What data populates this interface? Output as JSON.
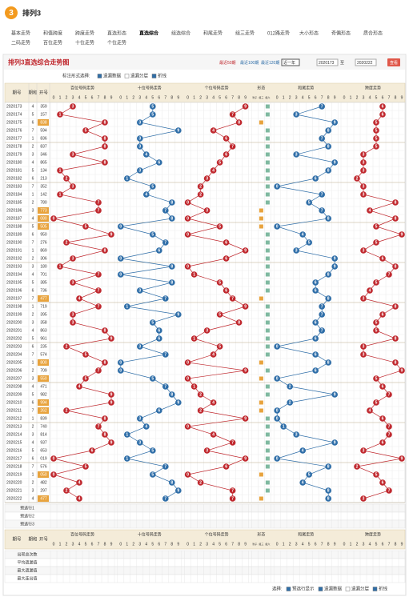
{
  "header": {
    "logo": "3",
    "title": "排列3"
  },
  "nav": [
    [
      "基本走势",
      "和值跨度",
      "跨度走势",
      "直选形态",
      "直选综合",
      "组选综合",
      "和尾走势",
      "组三走势",
      "012路走势",
      "大小形态",
      "奇偶形态",
      "质合形态"
    ],
    [
      "二码走势",
      "百位走势",
      "十位走势",
      "个位走势"
    ]
  ],
  "active_tab": [
    0,
    4
  ],
  "panel": {
    "title": "排列3直选综合走势图",
    "quick": [
      "最近50期",
      "最近100期",
      "最近120期"
    ],
    "range_select": "近一年",
    "from": "2020173",
    "to_label": "至",
    "to": "2020222",
    "button": "查看"
  },
  "options": {
    "label": "标注形式选择:",
    "items": [
      "遗漏数据",
      "遗漏分层",
      "折线"
    ],
    "checked": [
      true,
      false,
      true
    ]
  },
  "table": {
    "head": {
      "issue": "期号",
      "n": "期和",
      "number": "开号",
      "groups": [
        "百位号码走势",
        "十位号码走势",
        "个位号码走势",
        "形态",
        "和尾走势",
        "跨度走势"
      ],
      "forms": [
        "豹子",
        "组三",
        "组六"
      ],
      "digits": [
        0,
        1,
        2,
        3,
        4,
        5,
        6,
        7,
        8,
        9
      ]
    },
    "line_colors": [
      "#c0282e",
      "#2f6ea8",
      "#c0282e",
      "#2f6ea8",
      "#c0282e"
    ],
    "rows": [
      [
        "2020173",
        4,
        "359",
        3,
        5,
        9,
        7,
        6
      ],
      [
        "2020174",
        5,
        "157",
        1,
        5,
        7,
        3,
        6
      ],
      [
        "2020175",
        6,
        "838",
        8,
        3,
        8,
        9,
        5
      ],
      [
        "2020176",
        7,
        "594",
        5,
        9,
        4,
        8,
        5
      ],
      [
        "2020177",
        1,
        "836",
        8,
        3,
        6,
        7,
        5
      ],
      [
        "2020178",
        2,
        "837",
        8,
        3,
        7,
        8,
        5
      ],
      [
        "2020179",
        3,
        "346",
        3,
        4,
        6,
        3,
        3
      ],
      [
        "2020180",
        4,
        "865",
        8,
        6,
        5,
        9,
        3
      ],
      [
        "2020181",
        5,
        "134",
        1,
        3,
        4,
        8,
        3
      ],
      [
        "2020182",
        6,
        "213",
        2,
        1,
        3,
        6,
        2
      ],
      [
        "2020183",
        7,
        "352",
        3,
        5,
        2,
        0,
        3
      ],
      [
        "2020184",
        1,
        "142",
        1,
        4,
        2,
        7,
        3
      ],
      [
        "2020185",
        2,
        "780",
        7,
        8,
        0,
        5,
        8
      ],
      [
        "2020186",
        3,
        "773",
        7,
        7,
        3,
        7,
        4
      ],
      [
        "2020187",
        4,
        "080",
        0,
        8,
        0,
        8,
        8
      ],
      [
        "2020188",
        5,
        "505",
        5,
        0,
        5,
        0,
        5
      ],
      [
        "2020189",
        6,
        "950",
        9,
        5,
        0,
        4,
        9
      ],
      [
        "2020190",
        7,
        "276",
        2,
        7,
        6,
        5,
        5
      ],
      [
        "2020191",
        1,
        "869",
        8,
        6,
        9,
        3,
        3
      ],
      [
        "2020192",
        2,
        "306",
        3,
        0,
        6,
        9,
        6
      ],
      [
        "2020193",
        3,
        "180",
        1,
        8,
        0,
        9,
        8
      ],
      [
        "2020194",
        4,
        "701",
        7,
        0,
        1,
        8,
        7
      ],
      [
        "2020195",
        5,
        "385",
        3,
        8,
        5,
        6,
        5
      ],
      [
        "2020196",
        6,
        "736",
        7,
        3,
        6,
        6,
        4
      ],
      [
        "2020197",
        7,
        "477",
        4,
        7,
        7,
        8,
        3
      ],
      [
        "2020198",
        1,
        "719",
        7,
        1,
        9,
        7,
        8
      ],
      [
        "2020199",
        2,
        "395",
        3,
        9,
        5,
        7,
        6
      ],
      [
        "2020200",
        3,
        "358",
        3,
        5,
        8,
        6,
        5
      ],
      [
        "2020201",
        4,
        "863",
        8,
        6,
        3,
        7,
        5
      ],
      [
        "2020202",
        5,
        "961",
        9,
        6,
        1,
        6,
        8
      ],
      [
        "2020203",
        6,
        "235",
        2,
        3,
        5,
        0,
        3
      ],
      [
        "2020204",
        7,
        "574",
        5,
        7,
        4,
        6,
        3
      ],
      [
        "2020205",
        1,
        "800",
        8,
        0,
        0,
        8,
        8
      ],
      [
        "2020206",
        2,
        "709",
        7,
        0,
        9,
        6,
        9
      ],
      [
        "2020207",
        3,
        "550",
        5,
        5,
        0,
        0,
        5
      ],
      [
        "2020208",
        4,
        "471",
        4,
        7,
        1,
        2,
        6
      ],
      [
        "2020209",
        5,
        "982",
        9,
        8,
        2,
        9,
        7
      ],
      [
        "2020210",
        6,
        "994",
        9,
        9,
        4,
        2,
        5
      ],
      [
        "2020211",
        7,
        "262",
        2,
        6,
        2,
        0,
        4
      ],
      [
        "2020212",
        1,
        "839",
        8,
        3,
        9,
        0,
        6
      ],
      [
        "2020213",
        2,
        "740",
        7,
        4,
        0,
        1,
        7
      ],
      [
        "2020214",
        3,
        "814",
        8,
        1,
        4,
        3,
        7
      ],
      [
        "2020215",
        4,
        "937",
        9,
        3,
        7,
        9,
        6
      ],
      [
        "2020216",
        5,
        "653",
        6,
        5,
        3,
        4,
        3
      ],
      [
        "2020217",
        6,
        "019",
        0,
        1,
        9,
        0,
        9
      ],
      [
        "2020218",
        7,
        "576",
        5,
        7,
        6,
        8,
        2
      ],
      [
        "2020219",
        1,
        "050",
        0,
        5,
        0,
        5,
        5
      ],
      [
        "2020220",
        2,
        "482",
        4,
        8,
        2,
        4,
        6
      ],
      [
        "2020221",
        3,
        "297",
        2,
        9,
        7,
        8,
        7
      ],
      [
        "2020222",
        4,
        "477",
        4,
        7,
        7,
        8,
        3
      ]
    ],
    "preselect": [
      "预选行1",
      "预选行2",
      "预选行3"
    ],
    "stats": [
      "出现总次数",
      "平均遗漏值",
      "最大遗漏值",
      "最大连出值"
    ]
  },
  "footer": {
    "label": "选择:",
    "items": [
      "预选行显示",
      "遗漏数据",
      "遗漏分层",
      "折线"
    ],
    "checked": [
      true,
      true,
      false,
      true
    ]
  }
}
